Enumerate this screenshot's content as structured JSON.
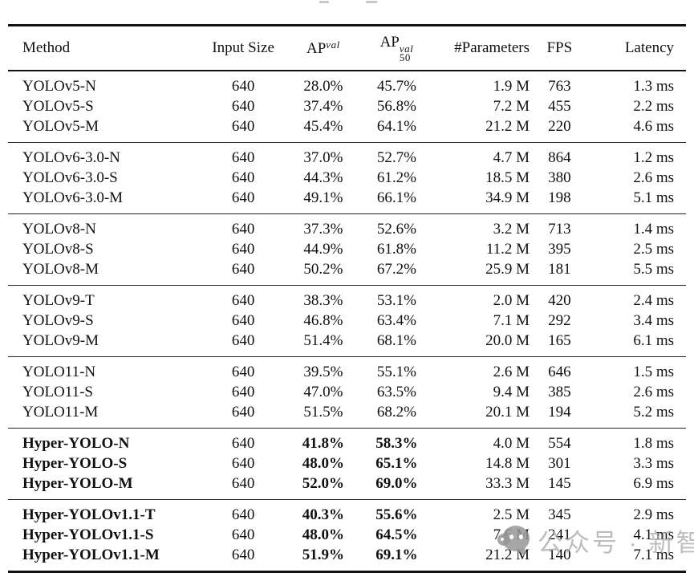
{
  "table": {
    "columns": [
      {
        "id": "method",
        "label": "Method"
      },
      {
        "id": "input-size",
        "label": "Input Size"
      },
      {
        "id": "ap-val",
        "base": "AP",
        "sup": "val"
      },
      {
        "id": "ap50-val",
        "base": "AP",
        "sup": "val",
        "sub": "50"
      },
      {
        "id": "parameters",
        "label": "#Parameters"
      },
      {
        "id": "fps",
        "label": "FPS"
      },
      {
        "id": "latency",
        "label": "Latency"
      }
    ],
    "bold_columns": [
      0,
      2,
      3
    ],
    "groups": [
      {
        "name": "YOLOv5",
        "bold": false,
        "rows": [
          [
            "YOLOv5-N",
            "640",
            "28.0%",
            "45.7%",
            "1.9 M",
            "763",
            "1.3 ms"
          ],
          [
            "YOLOv5-S",
            "640",
            "37.4%",
            "56.8%",
            "7.2 M",
            "455",
            "2.2 ms"
          ],
          [
            "YOLOv5-M",
            "640",
            "45.4%",
            "64.1%",
            "21.2 M",
            "220",
            "4.6 ms"
          ]
        ]
      },
      {
        "name": "YOLOv6-3.0",
        "bold": false,
        "rows": [
          [
            "YOLOv6-3.0-N",
            "640",
            "37.0%",
            "52.7%",
            "4.7 M",
            "864",
            "1.2 ms"
          ],
          [
            "YOLOv6-3.0-S",
            "640",
            "44.3%",
            "61.2%",
            "18.5 M",
            "380",
            "2.6 ms"
          ],
          [
            "YOLOv6-3.0-M",
            "640",
            "49.1%",
            "66.1%",
            "34.9 M",
            "198",
            "5.1 ms"
          ]
        ]
      },
      {
        "name": "YOLOv8",
        "bold": false,
        "rows": [
          [
            "YOLOv8-N",
            "640",
            "37.3%",
            "52.6%",
            "3.2 M",
            "713",
            "1.4 ms"
          ],
          [
            "YOLOv8-S",
            "640",
            "44.9%",
            "61.8%",
            "11.2 M",
            "395",
            "2.5 ms"
          ],
          [
            "YOLOv8-M",
            "640",
            "50.2%",
            "67.2%",
            "25.9 M",
            "181",
            "5.5 ms"
          ]
        ]
      },
      {
        "name": "YOLOv9",
        "bold": false,
        "rows": [
          [
            "YOLOv9-T",
            "640",
            "38.3%",
            "53.1%",
            "2.0 M",
            "420",
            "2.4 ms"
          ],
          [
            "YOLOv9-S",
            "640",
            "46.8%",
            "63.4%",
            "7.1 M",
            "292",
            "3.4 ms"
          ],
          [
            "YOLOv9-M",
            "640",
            "51.4%",
            "68.1%",
            "20.0 M",
            "165",
            "6.1 ms"
          ]
        ]
      },
      {
        "name": "YOLO11",
        "bold": false,
        "rows": [
          [
            "YOLO11-N",
            "640",
            "39.5%",
            "55.1%",
            "2.6 M",
            "646",
            "1.5 ms"
          ],
          [
            "YOLO11-S",
            "640",
            "47.0%",
            "63.5%",
            "9.4 M",
            "385",
            "2.6 ms"
          ],
          [
            "YOLO11-M",
            "640",
            "51.5%",
            "68.2%",
            "20.1 M",
            "194",
            "5.2 ms"
          ]
        ]
      },
      {
        "name": "Hyper-YOLO",
        "bold": true,
        "rows": [
          [
            "Hyper-YOLO-N",
            "640",
            "41.8%",
            "58.3%",
            "4.0 M",
            "554",
            "1.8 ms"
          ],
          [
            "Hyper-YOLO-S",
            "640",
            "48.0%",
            "65.1%",
            "14.8 M",
            "301",
            "3.3 ms"
          ],
          [
            "Hyper-YOLO-M",
            "640",
            "52.0%",
            "69.0%",
            "33.3 M",
            "145",
            "6.9 ms"
          ]
        ]
      },
      {
        "name": "Hyper-YOLOv1.1",
        "bold": true,
        "rows": [
          [
            "Hyper-YOLOv1.1-T",
            "640",
            "40.3%",
            "55.6%",
            "2.5 M",
            "345",
            "2.9 ms"
          ],
          [
            "Hyper-YOLOv1.1-S",
            "640",
            "48.0%",
            "64.5%",
            "7.6 M",
            "241",
            "4.1 ms"
          ],
          [
            "Hyper-YOLOv1.1-M",
            "640",
            "51.9%",
            "69.1%",
            "21.2 M",
            "140",
            "7.1 ms"
          ]
        ]
      }
    ]
  },
  "watermark": {
    "icon": "wechat-official-account-icon",
    "text": "公众号 · 新智元"
  }
}
